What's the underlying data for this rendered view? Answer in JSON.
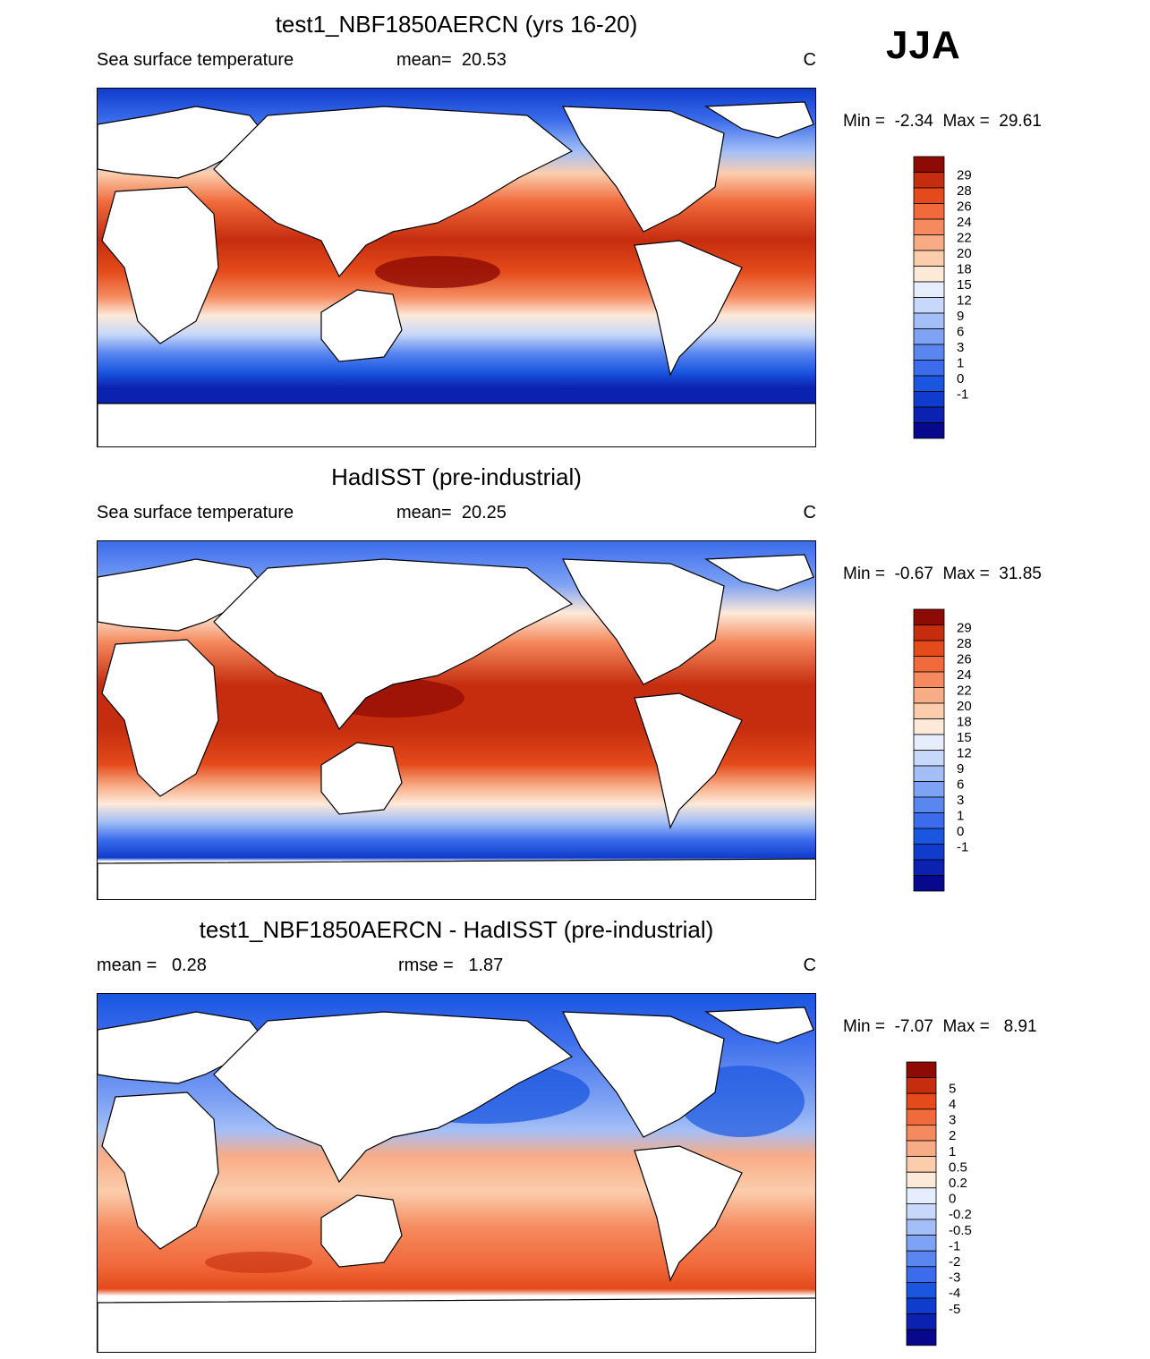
{
  "season": "JJA",
  "colors": {
    "abs_scale": [
      "#08088c",
      "#0b22b0",
      "#0f3ccc",
      "#1a56e0",
      "#3a6cec",
      "#5a86f0",
      "#7ea2f4",
      "#a4bff7",
      "#c8d8fa",
      "#e6edfc",
      "#fde9d8",
      "#fbcdac",
      "#f8ac86",
      "#f58a5e",
      "#f16a3c",
      "#e44a1a",
      "#c52d0e",
      "#8e0a04"
    ],
    "diff_scale": [
      "#08088c",
      "#0b22b0",
      "#0f3ccc",
      "#1a56e0",
      "#3a6cec",
      "#5a86f0",
      "#7ea2f4",
      "#a4bff7",
      "#c8d8fa",
      "#e6edfc",
      "#fde9d8",
      "#fbcdac",
      "#f8ac86",
      "#f58a5e",
      "#f16a3c",
      "#e44a1a",
      "#c52d0e",
      "#8e0a04"
    ]
  },
  "panels": [
    {
      "title": "test1_NBF1850AERCN (yrs 16-20)",
      "left_text": "Sea surface temperature",
      "mid_label": "mean=",
      "mid_value": "20.53",
      "units": "C",
      "min_label": "Min =",
      "min_value": "-2.34",
      "max_label": "Max =",
      "max_value": "29.61",
      "kind": "abs",
      "levels": [
        "29",
        "28",
        "26",
        "24",
        "22",
        "20",
        "18",
        "15",
        "12",
        "9",
        "6",
        "3",
        "1",
        "0",
        "-1"
      ]
    },
    {
      "title": "HadISST (pre-industrial)",
      "left_text": "Sea surface temperature",
      "mid_label": "mean=",
      "mid_value": "20.25",
      "units": "C",
      "min_label": "Min =",
      "min_value": "-0.67",
      "max_label": "Max =",
      "max_value": "31.85",
      "kind": "abs",
      "levels": [
        "29",
        "28",
        "26",
        "24",
        "22",
        "20",
        "18",
        "15",
        "12",
        "9",
        "6",
        "3",
        "1",
        "0",
        "-1"
      ]
    },
    {
      "title": "test1_NBF1850AERCN - HadISST (pre-industrial)",
      "left_label": "mean =",
      "left_value": "0.28",
      "mid_label": "rmse =",
      "mid_value": "1.87",
      "units": "C",
      "min_label": "Min =",
      "min_value": "-7.07",
      "max_label": "Max =",
      "max_value": "8.91",
      "kind": "diff",
      "levels": [
        "5",
        "4",
        "3",
        "2",
        "1",
        "0.5",
        "0.2",
        "0",
        "-0.2",
        "-0.5",
        "-1",
        "-2",
        "-3",
        "-4",
        "-5"
      ]
    }
  ]
}
